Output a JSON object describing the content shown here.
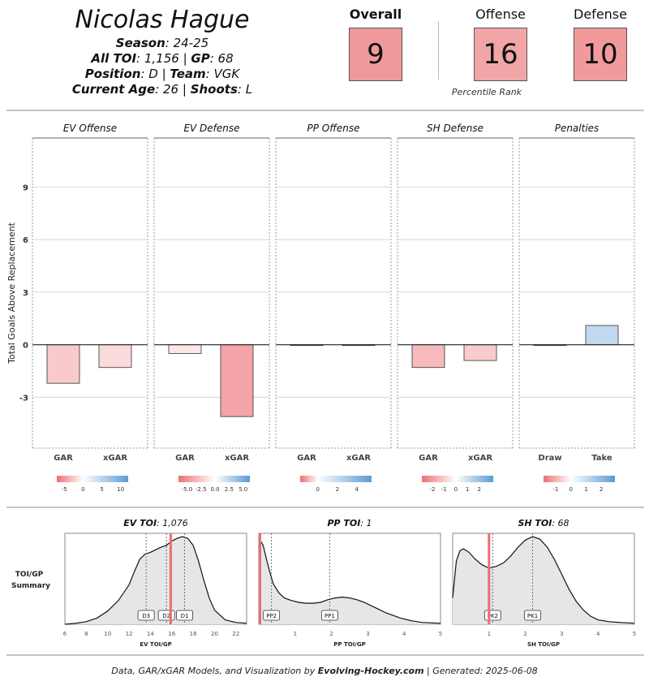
{
  "player": {
    "name": "Nicolas Hague",
    "season_label": "Season",
    "season": "24-25",
    "toi_label": "All TOI",
    "toi": "1,156",
    "gp_label": "GP",
    "gp": "68",
    "position_label": "Position",
    "position": "D",
    "team_label": "Team",
    "team": "VGK",
    "age_label": "Current Age",
    "age": "26",
    "shoots_label": "Shoots",
    "shoots": "L"
  },
  "metrics": [
    {
      "label": "Overall",
      "value": "9",
      "color": "#f0999b"
    },
    {
      "label": "Offense",
      "value": "16",
      "color": "#f2a5a7"
    },
    {
      "label": "Defense",
      "value": "10",
      "color": "#f09a9c"
    }
  ],
  "percentile_label": "Percentile Rank",
  "colors": {
    "negative": "#ee6f73",
    "positive": "#5b9bd5",
    "highlight": "#e8706f",
    "density_fill": "#e6e6e6"
  },
  "chart_data": [
    {
      "type": "bar",
      "ylabel": "Total Goals Above Replacement",
      "ylim": [
        -5.9,
        11.8
      ],
      "yticks": [
        -3,
        0,
        3,
        6,
        9
      ],
      "grid": true,
      "panels": [
        {
          "title": "EV Offense",
          "categories": [
            "GAR",
            "xGAR"
          ],
          "values": [
            -2.2,
            -1.3
          ],
          "legend_ticks": [
            "-5",
            "0",
            "5",
            "10"
          ],
          "legend_range": [
            -7,
            12
          ]
        },
        {
          "title": "EV Defense",
          "categories": [
            "GAR",
            "xGAR"
          ],
          "values": [
            -0.5,
            -4.1
          ],
          "legend_ticks": [
            "-5.0",
            "-2.5",
            "0.0",
            "2.5",
            "5.0"
          ],
          "legend_range": [
            -6.5,
            6.2
          ]
        },
        {
          "title": "PP Offense",
          "categories": [
            "GAR",
            "xGAR"
          ],
          "values": [
            0.0,
            0.0
          ],
          "legend_ticks": [
            "0",
            "2",
            "4"
          ],
          "legend_range": [
            -1.8,
            5.5
          ]
        },
        {
          "title": "SH Defense",
          "categories": [
            "GAR",
            "xGAR"
          ],
          "values": [
            -1.3,
            -0.9
          ],
          "legend_ticks": [
            "-2",
            "-1",
            "0",
            "1",
            "2"
          ],
          "legend_range": [
            -2.9,
            3.2
          ]
        },
        {
          "title": "Penalties",
          "categories": [
            "Draw",
            "Take"
          ],
          "values": [
            0.0,
            1.1
          ],
          "legend_ticks": [
            "-1",
            "0",
            "1",
            "2"
          ],
          "legend_range": [
            -1.8,
            2.9
          ]
        }
      ]
    },
    {
      "type": "area",
      "row_label": "TOI/GP Summary",
      "panels": [
        {
          "title_label": "EV TOI",
          "title_value": "1,076",
          "xlabel": "EV TOI/GP",
          "xlim": [
            6,
            23
          ],
          "xticks": [
            6,
            8,
            10,
            12,
            14,
            16,
            18,
            20,
            22
          ],
          "highlight": 15.9,
          "markers": [
            {
              "label": "D3",
              "x": 13.6
            },
            {
              "label": "D2",
              "x": 15.5
            },
            {
              "label": "D1",
              "x": 17.2
            }
          ],
          "x": [
            6,
            7,
            8,
            9,
            10,
            11,
            12,
            12.5,
            13,
            13.5,
            14,
            14.5,
            15,
            15.5,
            16,
            16.5,
            17,
            17.5,
            18,
            18.5,
            19,
            19.5,
            20,
            21,
            22,
            23
          ],
          "y": [
            0.0,
            0.01,
            0.03,
            0.07,
            0.15,
            0.27,
            0.45,
            0.6,
            0.74,
            0.8,
            0.82,
            0.85,
            0.88,
            0.9,
            0.95,
            0.98,
            1.0,
            0.98,
            0.9,
            0.72,
            0.5,
            0.3,
            0.16,
            0.05,
            0.02,
            0.01
          ]
        },
        {
          "title_label": "PP TOI",
          "title_value": "1",
          "xlabel": "PP TOI/GP",
          "xlim": [
            0,
            5
          ],
          "xticks": [
            1,
            2,
            3,
            4,
            5
          ],
          "highlight": 0.01,
          "markers": [
            {
              "label": "PP2",
              "x": 0.35
            },
            {
              "label": "PP1",
              "x": 1.95
            }
          ],
          "x": [
            0,
            0.05,
            0.12,
            0.2,
            0.3,
            0.4,
            0.55,
            0.7,
            0.9,
            1.1,
            1.3,
            1.5,
            1.7,
            1.9,
            2.1,
            2.3,
            2.5,
            2.7,
            2.9,
            3.1,
            3.3,
            3.5,
            3.7,
            3.9,
            4.2,
            4.5,
            5
          ],
          "y": [
            0.88,
            0.95,
            0.9,
            0.76,
            0.6,
            0.46,
            0.36,
            0.3,
            0.27,
            0.25,
            0.24,
            0.24,
            0.25,
            0.28,
            0.3,
            0.31,
            0.3,
            0.28,
            0.25,
            0.21,
            0.17,
            0.13,
            0.1,
            0.07,
            0.04,
            0.02,
            0.01
          ]
        },
        {
          "title_label": "SH TOI",
          "title_value": "68",
          "xlabel": "SH TOI/GP",
          "xlim": [
            0,
            5
          ],
          "xticks": [
            1,
            2,
            3,
            4,
            5
          ],
          "highlight": 1.0,
          "markers": [
            {
              "label": "PK2",
              "x": 1.1
            },
            {
              "label": "PK1",
              "x": 2.2
            }
          ],
          "x": [
            0,
            0.1,
            0.2,
            0.3,
            0.45,
            0.6,
            0.8,
            1.0,
            1.2,
            1.4,
            1.6,
            1.8,
            2.0,
            2.2,
            2.4,
            2.6,
            2.8,
            3.0,
            3.2,
            3.4,
            3.6,
            3.8,
            4.0,
            4.3,
            4.6,
            5
          ],
          "y": [
            0.3,
            0.72,
            0.84,
            0.86,
            0.82,
            0.75,
            0.68,
            0.64,
            0.66,
            0.7,
            0.78,
            0.88,
            0.96,
            1.0,
            0.97,
            0.88,
            0.74,
            0.57,
            0.4,
            0.26,
            0.16,
            0.09,
            0.05,
            0.03,
            0.02,
            0.01
          ]
        }
      ]
    }
  ],
  "footer": {
    "prefix": "Data, GAR/xGAR Models, and Visualization by ",
    "brand": "Evolving-Hockey.com",
    "suffix": " | Generated: 2025-06-08"
  }
}
